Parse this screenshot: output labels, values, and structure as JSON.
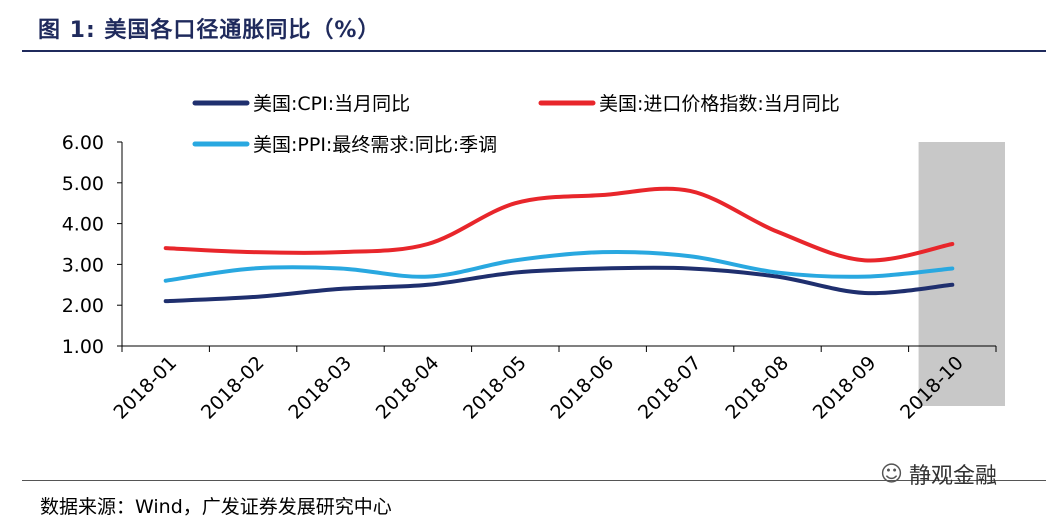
{
  "header": {
    "title": "图 1:  美国各口径通胀同比（%）"
  },
  "footer": {
    "source": "数据来源：Wind，广发证券发展研究中心"
  },
  "watermark": {
    "text": "静观金融",
    "icon": "wechat-icon"
  },
  "chart_data": {
    "type": "line",
    "categories": [
      "2018-01",
      "2018-02",
      "2018-03",
      "2018-04",
      "2018-05",
      "2018-06",
      "2018-07",
      "2018-08",
      "2018-09",
      "2018-10"
    ],
    "ylim": [
      1.0,
      6.0
    ],
    "yticks": [
      "1.00",
      "2.00",
      "3.00",
      "4.00",
      "5.00",
      "6.00"
    ],
    "highlight_category": "2018-10",
    "legend_position": "top",
    "series": [
      {
        "name": "美国:CPI:当月同比",
        "color": "#1f2f6e",
        "values": [
          2.1,
          2.2,
          2.4,
          2.5,
          2.8,
          2.9,
          2.9,
          2.7,
          2.3,
          2.5
        ]
      },
      {
        "name": "美国:进口价格指数:当月同比",
        "color": "#e8262b",
        "values": [
          3.4,
          3.3,
          3.3,
          3.5,
          4.5,
          4.7,
          4.8,
          3.8,
          3.1,
          3.5
        ]
      },
      {
        "name": "美国:PPI:最终需求:同比:季调",
        "color": "#29a8e0",
        "values": [
          2.6,
          2.9,
          2.9,
          2.7,
          3.1,
          3.3,
          3.2,
          2.8,
          2.7,
          2.9
        ]
      }
    ]
  }
}
